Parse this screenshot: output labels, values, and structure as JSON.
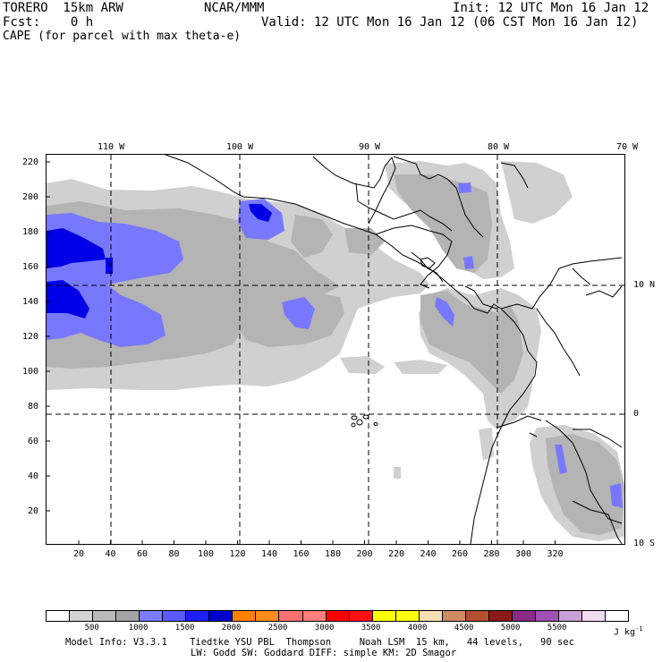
{
  "header": {
    "model": "TORERO  15km ARW",
    "org": "NCAR/MMM",
    "init": "Init: 12 UTC Mon 16 Jan 12",
    "fcst": "Fcst:    0 h",
    "valid": "Valid: 12 UTC Mon 16 Jan 12 (06 CST Mon 16 Jan 12)",
    "field": "CAPE (for parcel with max theta-e)"
  },
  "map": {
    "top_lon_labels": [
      "110 W",
      "100 W",
      "90 W",
      "80 W",
      "70 W"
    ],
    "right_lat_labels": [
      "10 N",
      "0",
      "10 S"
    ],
    "y_ticks": [
      "220",
      "200",
      "180",
      "160",
      "140",
      "120",
      "100",
      "80",
      "60",
      "40",
      "20"
    ],
    "x_ticks": [
      "20",
      "40",
      "60",
      "80",
      "100",
      "120",
      "140",
      "160",
      "180",
      "200",
      "220",
      "240",
      "260",
      "280",
      "300",
      "320"
    ],
    "shade_colors": {
      "c500": "#d0d0d0",
      "c1000": "#b4b4b4",
      "c1500": "#7878ff",
      "c2000": "#0000e6"
    }
  },
  "colorbar": {
    "colors": [
      "#ffffff",
      "#d3d3d3",
      "#b9b9b9",
      "#a5a5a5",
      "#7b7bff",
      "#5a5aff",
      "#1e1eff",
      "#0000cd",
      "#ff8000",
      "#ff8c1a",
      "#ff7070",
      "#ff7f7f",
      "#ff0000",
      "#ff1010",
      "#ffff00",
      "#ffff10",
      "#f5deb3",
      "#cd8c64",
      "#b45032",
      "#8b1a1a",
      "#8b2a8b",
      "#a050b4",
      "#c8a0d2",
      "#f0dcf0",
      "#ffffff"
    ],
    "labels": [
      "500",
      "1000",
      "1500",
      "2000",
      "2500",
      "3000",
      "3500",
      "4000",
      "4500",
      "5000",
      "5500"
    ],
    "units": "J kg",
    "units_exp": "-1"
  },
  "footer": {
    "line1": "Model Info: V3.3.1    Tiedtke YSU PBL  Thompson     Noah LSM  15 km,   44 levels,   90 sec",
    "line2": "LW: Godd SW: Goddard DIFF: simple KM: 2D Smagor"
  }
}
